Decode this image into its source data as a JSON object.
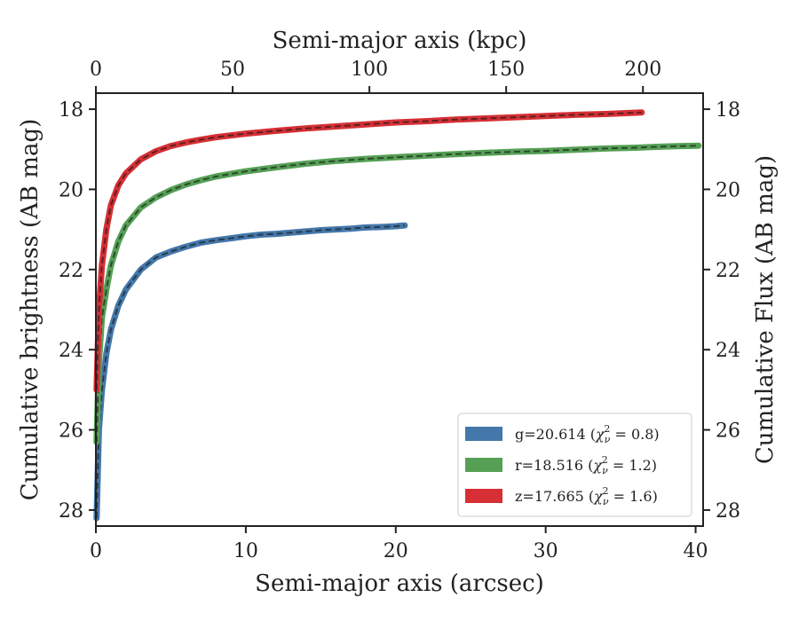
{
  "chart_data": {
    "type": "line",
    "xlabel": "Semi-major axis (arcsec)",
    "ylabel": "Cumulative brightness (AB mag)",
    "top_xlabel": "Semi-major axis (kpc)",
    "right_ylabel": "Cumulative Flux (AB mag)",
    "xlim": [
      0,
      40.5
    ],
    "ylim": [
      28.4,
      17.6
    ],
    "y_inverted": true,
    "top_xlim": [
      0,
      222
    ],
    "x_ticks": [
      0,
      10,
      20,
      30,
      40
    ],
    "x_tick_labels": [
      "0",
      "10",
      "20",
      "30",
      "40"
    ],
    "top_x_ticks": [
      0,
      50,
      100,
      150,
      200
    ],
    "top_x_tick_labels": [
      "0",
      "50",
      "100",
      "150",
      "200"
    ],
    "y_ticks": [
      18,
      20,
      22,
      24,
      26,
      28
    ],
    "y_tick_labels": [
      "18",
      "20",
      "22",
      "24",
      "26",
      "28"
    ],
    "grid": false,
    "legend_position": "lower-right",
    "series": [
      {
        "name": "g=20.614 (χ²_ν = 0.8)",
        "label_main": "g=20.614 (",
        "label_sym": "χ",
        "label_sup": "2",
        "label_sub": "ν",
        "label_rest": " = 0.8)",
        "color": "#4477aa",
        "x": [
          0.05,
          0.2,
          0.4,
          0.7,
          1.0,
          1.5,
          2.0,
          3.0,
          4.0,
          5.0,
          6.0,
          7.0,
          8.0,
          9.0,
          10.0,
          11.0,
          12.0,
          13.0,
          14.0,
          15.0,
          16.0,
          17.0,
          18.0,
          19.0,
          20.0,
          20.6
        ],
        "y": [
          28.2,
          26.0,
          25.0,
          24.1,
          23.5,
          22.9,
          22.5,
          22.0,
          21.7,
          21.55,
          21.43,
          21.33,
          21.27,
          21.22,
          21.17,
          21.13,
          21.11,
          21.08,
          21.05,
          21.02,
          21.0,
          20.98,
          20.95,
          20.94,
          20.92,
          20.9
        ]
      },
      {
        "name": "r=18.516 (χ²_ν = 1.2)",
        "label_main": "r=18.516 (",
        "label_sym": "χ",
        "label_sup": "2",
        "label_sub": "ν",
        "label_rest": " = 1.2)",
        "color": "#55a055",
        "x": [
          0.05,
          0.2,
          0.4,
          0.7,
          1.0,
          1.5,
          2.0,
          3.0,
          4.0,
          5.0,
          6.0,
          7.0,
          8.0,
          10.0,
          12.0,
          14.0,
          16.0,
          18.0,
          20.0,
          22.0,
          24.0,
          26.0,
          28.0,
          30.0,
          32.0,
          34.0,
          36.0,
          38.0,
          40.2
        ],
        "y": [
          26.3,
          24.3,
          23.2,
          22.5,
          21.9,
          21.3,
          20.9,
          20.45,
          20.2,
          20.02,
          19.88,
          19.77,
          19.68,
          19.55,
          19.45,
          19.36,
          19.29,
          19.24,
          19.2,
          19.16,
          19.12,
          19.09,
          19.06,
          19.04,
          19.01,
          18.98,
          18.96,
          18.93,
          18.91
        ]
      },
      {
        "name": "z=17.665 (χ²_ν = 1.6)",
        "label_main": "z=17.665 (",
        "label_sym": "χ",
        "label_sup": "2",
        "label_sub": "ν",
        "label_rest": " = 1.6)",
        "color": "#d62f35",
        "x": [
          0.05,
          0.2,
          0.4,
          0.7,
          1.0,
          1.5,
          2.0,
          3.0,
          4.0,
          5.0,
          6.0,
          7.0,
          8.0,
          10.0,
          12.0,
          14.0,
          16.0,
          18.0,
          20.0,
          22.0,
          24.0,
          26.0,
          28.0,
          30.0,
          32.0,
          34.0,
          36.4
        ],
        "y": [
          25.0,
          23.0,
          21.9,
          21.0,
          20.4,
          19.9,
          19.6,
          19.25,
          19.05,
          18.92,
          18.83,
          18.76,
          18.7,
          18.61,
          18.54,
          18.48,
          18.43,
          18.38,
          18.33,
          18.3,
          18.26,
          18.23,
          18.2,
          18.17,
          18.14,
          18.12,
          18.08
        ]
      }
    ]
  }
}
